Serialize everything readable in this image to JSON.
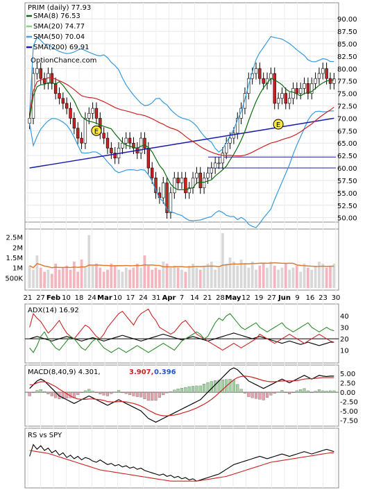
{
  "chart_data": [
    {
      "type": "candlestick",
      "title": "PRIM (daily) 77.93",
      "watermark": "OptionChance.com",
      "yticks": [
        "90.00",
        "87.50",
        "85.00",
        "82.50",
        "80.00",
        "77.50",
        "75.00",
        "72.50",
        "70.00",
        "67.50",
        "65.00",
        "62.50",
        "60.00",
        "57.50",
        "55.00",
        "52.50",
        "50.00"
      ],
      "ylim": [
        48,
        91
      ],
      "legend": [
        {
          "name": "SMA(8) 76.53",
          "color": "#0a6b0a"
        },
        {
          "name": "SMA(20) 74.77",
          "color": "#7fd67f"
        },
        {
          "name": "SMA(50) 70.04",
          "color": "#48a0e0"
        },
        {
          "name": "SMA(200) 69.91",
          "color": "#1a1aaa"
        }
      ],
      "earnings_markers": [
        {
          "x": 18,
          "y": 67.5,
          "label": "E"
        },
        {
          "x": 67,
          "y": 68.8,
          "label": "E"
        }
      ],
      "horizontal_lines": [
        62.2,
        60.0
      ],
      "close": [
        70,
        79,
        80,
        78,
        77,
        79,
        77,
        75,
        74,
        73,
        72,
        70,
        68,
        66,
        65,
        70,
        71,
        72,
        70,
        67,
        66,
        64,
        63,
        62,
        64,
        65,
        66,
        65,
        64,
        63,
        66,
        64,
        60,
        58,
        55,
        54,
        57,
        51,
        55,
        58,
        57,
        58,
        55,
        56,
        58,
        59,
        56,
        58,
        59,
        60,
        61,
        61,
        63,
        65,
        66,
        67,
        70,
        72,
        75,
        78,
        79,
        80,
        78,
        77,
        78,
        79,
        73,
        74,
        75,
        73,
        74,
        76,
        75,
        76,
        77,
        75,
        77,
        78,
        79,
        80,
        78,
        77,
        77.93
      ],
      "colors": {
        "up": "#ffffff",
        "down": "#cc2222",
        "bollinger": "#3399dd",
        "sma200": "#1a1aaa",
        "sma50": "#cc2222",
        "sma8": "#0a6b0a"
      }
    },
    {
      "type": "bar",
      "title": "",
      "yticks": [
        "2.5M",
        "2M",
        "1.5M",
        "1M",
        "500K"
      ],
      "xticks": [
        "21",
        "27",
        "Feb",
        "10",
        "18",
        "24",
        "Mar",
        "10",
        "17",
        "24",
        "31",
        "Apr",
        "7",
        "14",
        "21",
        "28",
        "May",
        "12",
        "19",
        "27",
        "Jun",
        "9",
        "16",
        "23",
        "30"
      ],
      "volume_millions": [
        1.1,
        0.9,
        1.6,
        1.0,
        0.8,
        0.9,
        0.7,
        1.2,
        0.9,
        1.0,
        1.1,
        0.9,
        1.3,
        0.8,
        1.4,
        1.0,
        2.6,
        1.1,
        1.2,
        1.0,
        0.8,
        0.9,
        1.2,
        1.1,
        0.9,
        0.8,
        1.0,
        0.9,
        1.0,
        1.2,
        1.0,
        1.6,
        1.1,
        0.9,
        1.0,
        0.9,
        1.3,
        1.2,
        1.0,
        1.1,
        1.0,
        0.9,
        0.8,
        1.1,
        1.2,
        1.0,
        0.9,
        1.1,
        1.2,
        1.3,
        0.9,
        1.0,
        2.7,
        1.2,
        1.5,
        1.3,
        1.1,
        1.4,
        1.2,
        1.0,
        1.3,
        0.9,
        1.1,
        1.2,
        1.0,
        1.3,
        1.1,
        0.9,
        1.0,
        1.2,
        0.9,
        1.0,
        1.1,
        0.8,
        1.2,
        1.0,
        0.9,
        1.1,
        1.3,
        1.2,
        1.0,
        1.1,
        1.2
      ],
      "avg_color": "#e07a30"
    },
    {
      "type": "line",
      "title": "ADX(14) 16.92",
      "yticks": [
        "40",
        "30",
        "20",
        "10"
      ],
      "ylim": [
        0,
        48
      ],
      "reference_line": 20,
      "series": [
        {
          "color": "#000000",
          "values": [
            20,
            21,
            22,
            21,
            20,
            19,
            18,
            19,
            20,
            21,
            22,
            21,
            20,
            19,
            18,
            19,
            20,
            21,
            20,
            19,
            18,
            19,
            20,
            21,
            22,
            23,
            22,
            21,
            20,
            19,
            18,
            19,
            20,
            21,
            22,
            23,
            24,
            23,
            22,
            21,
            20,
            19,
            20,
            21,
            22,
            21,
            20,
            19,
            18,
            19,
            20,
            21,
            22,
            23,
            24,
            25,
            24,
            23,
            22,
            21,
            20,
            21,
            22,
            21,
            20,
            19,
            18,
            17,
            16,
            17,
            18,
            17,
            16,
            15,
            16,
            17,
            16,
            15,
            14,
            15,
            16,
            17,
            17
          ]
        },
        {
          "color": "#cc2222",
          "values": [
            30,
            42,
            38,
            35,
            30,
            25,
            28,
            32,
            36,
            30,
            25,
            22,
            20,
            24,
            28,
            32,
            30,
            26,
            22,
            20,
            24,
            30,
            34,
            38,
            42,
            44,
            40,
            36,
            32,
            38,
            42,
            44,
            46,
            40,
            36,
            30,
            28,
            26,
            24,
            26,
            30,
            34,
            36,
            32,
            28,
            24,
            22,
            20,
            18,
            16,
            14,
            12,
            10,
            12,
            14,
            16,
            14,
            12,
            14,
            16,
            18,
            20,
            24,
            22,
            20,
            18,
            16,
            18,
            20,
            22,
            24,
            22,
            20,
            18,
            16,
            18,
            20,
            22,
            24,
            22,
            20,
            18,
            17
          ]
        },
        {
          "color": "#2a8a2a",
          "values": [
            12,
            8,
            14,
            22,
            26,
            20,
            16,
            12,
            10,
            14,
            18,
            22,
            20,
            16,
            12,
            10,
            14,
            18,
            20,
            16,
            12,
            10,
            8,
            10,
            12,
            10,
            8,
            10,
            12,
            14,
            12,
            10,
            8,
            10,
            12,
            14,
            16,
            14,
            12,
            10,
            14,
            18,
            20,
            22,
            24,
            26,
            24,
            20,
            22,
            28,
            34,
            38,
            36,
            40,
            42,
            38,
            34,
            30,
            28,
            30,
            32,
            34,
            30,
            28,
            26,
            28,
            30,
            32,
            34,
            30,
            28,
            26,
            28,
            30,
            32,
            34,
            30,
            28,
            26,
            28,
            30,
            28,
            27
          ]
        }
      ]
    },
    {
      "type": "line",
      "title": "MACD(8,40,9) 4.301,",
      "extra_values": [
        {
          "text": "3.907,",
          "color": "#cc2222"
        },
        {
          "text": "0.396",
          "color": "#2255cc"
        }
      ],
      "yticks": [
        "5.00",
        "2.50",
        "0.00",
        "-2.50",
        "-5.00",
        "-7.50"
      ],
      "ylim": [
        -8.5,
        6.5
      ],
      "macd": [
        1,
        2,
        3,
        3.5,
        3,
        2,
        1,
        0,
        -1,
        -1.5,
        -2,
        -2.5,
        -3,
        -2.5,
        -2,
        -1.5,
        -1,
        -1.5,
        -2,
        -2.5,
        -3,
        -3.5,
        -3,
        -2.5,
        -2,
        -2.5,
        -3,
        -3.5,
        -4,
        -4.5,
        -5,
        -6,
        -7,
        -7.5,
        -8,
        -7.5,
        -7,
        -6.5,
        -6,
        -5.5,
        -5,
        -4.5,
        -4,
        -3.5,
        -3,
        -2.5,
        -2,
        -1,
        0,
        1,
        2,
        3,
        4,
        5,
        6,
        6.5,
        6,
        5,
        4,
        3,
        2.5,
        2,
        1.5,
        1,
        1.5,
        2,
        2.5,
        3,
        3.5,
        3,
        2.5,
        3,
        3.5,
        4,
        4.5,
        4,
        3.5,
        4,
        4.5,
        4.3,
        4.2,
        4.3,
        4.3
      ],
      "signal": [
        2,
        2,
        2.5,
        2.8,
        2.8,
        2.5,
        2,
        1.5,
        0.8,
        0.2,
        -0.4,
        -1,
        -1.5,
        -1.8,
        -1.9,
        -1.9,
        -1.8,
        -1.8,
        -1.9,
        -2,
        -2.2,
        -2.5,
        -2.6,
        -2.6,
        -2.5,
        -2.5,
        -2.6,
        -2.8,
        -3,
        -3.3,
        -3.7,
        -4.2,
        -4.8,
        -5.3,
        -5.8,
        -6.1,
        -6.3,
        -6.3,
        -6.2,
        -6.1,
        -5.9,
        -5.6,
        -5.3,
        -5,
        -4.6,
        -4.2,
        -3.7,
        -3.2,
        -2.6,
        -1.9,
        -1.1,
        -0.2,
        0.7,
        1.6,
        2.5,
        3.3,
        3.9,
        4.2,
        4.3,
        4.2,
        4,
        3.7,
        3.4,
        3.1,
        2.9,
        2.8,
        2.8,
        2.9,
        3,
        3,
        3,
        3,
        3.1,
        3.3,
        3.5,
        3.6,
        3.6,
        3.7,
        3.8,
        3.9,
        3.9,
        3.9,
        3.9
      ]
    },
    {
      "type": "line",
      "title": "RS vs SPY",
      "series": [
        {
          "color": "#000000",
          "values": [
            60,
            80,
            72,
            78,
            70,
            74,
            66,
            70,
            62,
            66,
            58,
            62,
            56,
            60,
            54,
            58,
            56,
            52,
            50,
            54,
            50,
            46,
            48,
            44,
            46,
            42,
            44,
            40,
            42,
            38,
            40,
            36,
            34,
            32,
            30,
            28,
            30,
            26,
            28,
            24,
            26,
            22,
            24,
            20,
            22,
            18,
            20,
            22,
            24,
            26,
            28,
            30,
            34,
            38,
            42,
            46,
            48,
            50,
            52,
            54,
            56,
            58,
            60,
            58,
            56,
            58,
            60,
            62,
            64,
            62,
            60,
            62,
            64,
            66,
            68,
            66,
            64,
            66,
            68,
            70,
            72,
            70,
            68
          ]
        },
        {
          "color": "#cc2222",
          "values": [
            70,
            69,
            68,
            67,
            66,
            65,
            63,
            61,
            59,
            57,
            55,
            53,
            51,
            49,
            47,
            45,
            43,
            41,
            39,
            37,
            36,
            35,
            34,
            33,
            32,
            31,
            30,
            29,
            28,
            27,
            26,
            25,
            24,
            23,
            22,
            21,
            20,
            19,
            18,
            18,
            18,
            18,
            18,
            18,
            18,
            18,
            19,
            20,
            21,
            22,
            23,
            24,
            25,
            26,
            28,
            30,
            32,
            34,
            36,
            38,
            40,
            42,
            44,
            46,
            48,
            50,
            51,
            52,
            53,
            54,
            55,
            56,
            57,
            58,
            59,
            60,
            61,
            62,
            63,
            64,
            65,
            66,
            66
          ]
        }
      ]
    }
  ]
}
